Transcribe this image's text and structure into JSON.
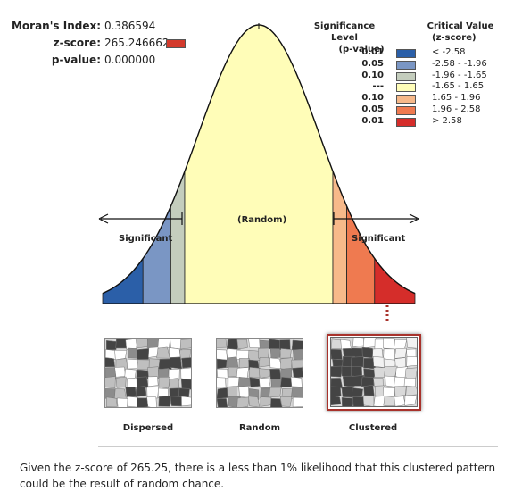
{
  "stats": {
    "moran_label": "Moran's Index:",
    "moran_value": "0.386594",
    "zscore_label": "z-score:",
    "zscore_value": "265.246662",
    "zscore_color": "#d33a2c",
    "pvalue_label": "p-value:",
    "pvalue_value": "0.000000"
  },
  "legend": {
    "sig_header_line1": "Significance Level",
    "sig_header_line2": "(p-value)",
    "crit_header_line1": "Critical Value",
    "crit_header_line2": "(z-score)",
    "rows": [
      {
        "p": "0.01",
        "color": "#2b5fa8",
        "crit": "< -2.58"
      },
      {
        "p": "0.05",
        "color": "#7a96c4",
        "crit": "-2.58 - -1.96"
      },
      {
        "p": "0.10",
        "color": "#c4cdbd",
        "crit": "-1.96 - -1.65"
      },
      {
        "p": "---",
        "color": "#fffdb8",
        "crit": "-1.65 - 1.65"
      },
      {
        "p": "0.10",
        "color": "#f7b98a",
        "crit": "1.65 - 1.96"
      },
      {
        "p": "0.05",
        "color": "#ef7a50",
        "crit": "1.96 - 2.58"
      },
      {
        "p": "0.01",
        "color": "#d52d2a",
        "crit": "> 2.58"
      }
    ]
  },
  "curve": {
    "random_label": "(Random)",
    "left_significant": "Significant",
    "right_significant": "Significant"
  },
  "maps": {
    "dispersed": "Dispersed",
    "random": "Random",
    "clustered": "Clustered"
  },
  "summary": "Given the z-score of 265.25, there is a less than 1% likelihood that this clustered pattern could be the result of random chance."
}
